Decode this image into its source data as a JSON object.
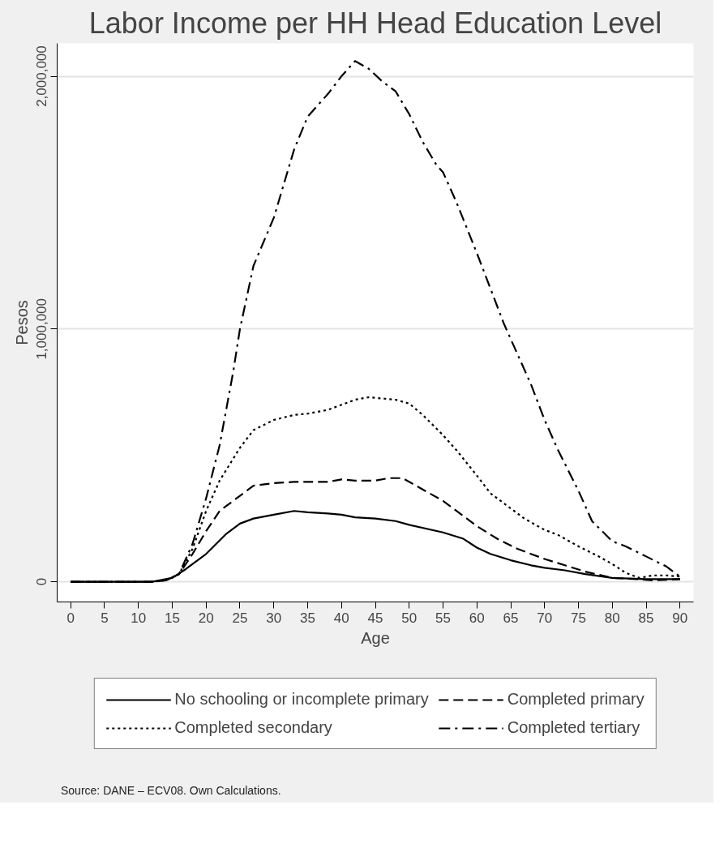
{
  "chart_data": {
    "type": "line",
    "title": "Labor Income per HH Head Education Level",
    "xlabel": "Age",
    "ylabel": "Pesos",
    "xlim": [
      -2,
      92
    ],
    "xticks": [
      0,
      5,
      10,
      15,
      20,
      25,
      30,
      35,
      40,
      45,
      50,
      55,
      60,
      65,
      70,
      75,
      80,
      85,
      90
    ],
    "ylim": [
      -80000,
      2130000
    ],
    "yticks": [
      {
        "value": 0,
        "label": "0"
      },
      {
        "value": 1000000,
        "label": "1,000,000"
      },
      {
        "value": 2000000,
        "label": "2,000,000"
      }
    ],
    "grid": "y",
    "legend": "bottom",
    "annotations": [
      "Source: DANE – ECV08. Own Calculations."
    ],
    "series": [
      {
        "name": "No schooling or incomplete primary",
        "color": "#000000",
        "line_style": "solid",
        "x": [
          0,
          5,
          10,
          12,
          15,
          17,
          20,
          23,
          25,
          27,
          30,
          33,
          35,
          38,
          40,
          42,
          45,
          48,
          50,
          55,
          58,
          60,
          62,
          65,
          68,
          70,
          73,
          76,
          80,
          85,
          90
        ],
        "values": [
          0,
          0,
          0,
          0,
          15000,
          50000,
          110000,
          190000,
          230000,
          250000,
          265000,
          280000,
          275000,
          270000,
          265000,
          255000,
          250000,
          240000,
          225000,
          195000,
          170000,
          135000,
          110000,
          85000,
          65000,
          55000,
          45000,
          30000,
          15000,
          10000,
          10000
        ]
      },
      {
        "name": "Completed primary",
        "color": "#000000",
        "line_style": "dashed",
        "x": [
          0,
          5,
          10,
          12,
          14,
          16,
          18,
          20,
          22,
          25,
          27,
          30,
          33,
          35,
          38,
          40,
          42,
          45,
          47,
          49,
          51,
          55,
          58,
          60,
          63,
          66,
          70,
          73,
          76,
          80,
          84,
          86,
          90
        ],
        "values": [
          0,
          0,
          0,
          0,
          5000,
          30000,
          110000,
          200000,
          280000,
          340000,
          380000,
          390000,
          395000,
          395000,
          395000,
          405000,
          400000,
          400000,
          410000,
          410000,
          380000,
          320000,
          260000,
          220000,
          170000,
          130000,
          90000,
          65000,
          40000,
          15000,
          10000,
          5000,
          10000
        ]
      },
      {
        "name": "Completed secondary",
        "color": "#000000",
        "line_style": "dotted",
        "x": [
          0,
          5,
          10,
          12,
          14,
          16,
          18,
          20,
          22,
          25,
          27,
          30,
          33,
          35,
          38,
          40,
          42,
          44,
          46,
          48,
          50,
          52,
          55,
          57,
          60,
          62,
          65,
          67,
          70,
          72,
          75,
          78,
          80,
          82,
          84,
          86,
          88,
          90
        ],
        "values": [
          0,
          0,
          0,
          0,
          5000,
          30000,
          130000,
          280000,
          400000,
          530000,
          600000,
          640000,
          660000,
          665000,
          680000,
          700000,
          720000,
          730000,
          725000,
          720000,
          705000,
          660000,
          580000,
          520000,
          420000,
          350000,
          290000,
          250000,
          205000,
          185000,
          140000,
          100000,
          70000,
          35000,
          15000,
          25000,
          25000,
          20000
        ]
      },
      {
        "name": "Completed tertiary",
        "color": "#000000",
        "line_style": "dashdot",
        "x": [
          0,
          5,
          10,
          12,
          14,
          16,
          18,
          20,
          22,
          24,
          25,
          27,
          30,
          33,
          35,
          38,
          40,
          42,
          44,
          46,
          48,
          50,
          52,
          54,
          55,
          57,
          60,
          62,
          64,
          66,
          68,
          70,
          72,
          75,
          77,
          80,
          82,
          85,
          88,
          90
        ],
        "values": [
          0,
          0,
          0,
          0,
          5000,
          30000,
          150000,
          330000,
          540000,
          830000,
          1000000,
          1250000,
          1440000,
          1710000,
          1840000,
          1930000,
          2000000,
          2060000,
          2030000,
          1980000,
          1940000,
          1850000,
          1740000,
          1650000,
          1620000,
          1500000,
          1300000,
          1160000,
          1020000,
          900000,
          780000,
          640000,
          520000,
          360000,
          240000,
          160000,
          140000,
          100000,
          60000,
          20000
        ]
      }
    ]
  }
}
